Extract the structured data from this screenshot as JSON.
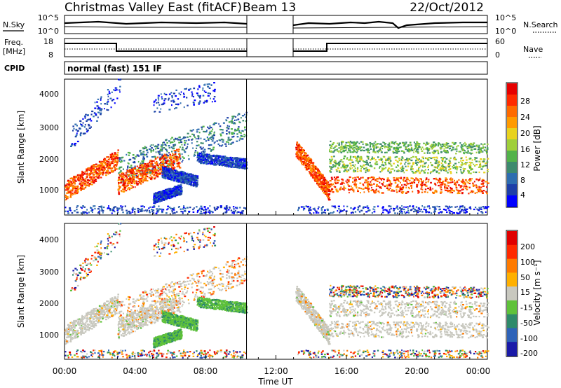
{
  "header": {
    "title": "Christmas Valley East (fitACF)",
    "beam": "Beam 13",
    "date": "22/Oct/2012"
  },
  "noise_panel": {
    "left_label": "N.Sky",
    "left_ticks": [
      "10^5",
      "10^0"
    ],
    "right_ticks": [
      "10^5",
      "10^0"
    ],
    "right_label": "N.Search"
  },
  "freq_panel": {
    "left_label_1": "Freq.",
    "left_label_2": "[MHz]",
    "left_ticks": [
      "18",
      "8"
    ],
    "right_ticks": [
      "60",
      "0"
    ],
    "right_label": "Nave"
  },
  "cpid_panel": {
    "label": "CPID",
    "mode_text": "normal (fast) 151 IF"
  },
  "chart_data": [
    {
      "type": "heatmap",
      "ylabel": "Slant Range [km]",
      "y_ticks": [
        "4000",
        "3000",
        "2000",
        "1000"
      ],
      "ylim": [
        180,
        4500
      ],
      "xlim_hours": [
        0,
        24
      ],
      "data_gap_hours": [
        10.33,
        13.0
      ],
      "colorbar": {
        "label": "Power [dB]",
        "ticks": [
          "28",
          "24",
          "20",
          "16",
          "12",
          "8",
          "4"
        ],
        "colors": [
          "#0000ff",
          "#1e3fa8",
          "#2e6db0",
          "#3d8a6e",
          "#52b24a",
          "#9fcf3a",
          "#e8d21e",
          "#ff9a00",
          "#ff6a00",
          "#ff2a00",
          "#e60000"
        ]
      }
    },
    {
      "type": "heatmap",
      "ylabel": "Slant Range [km]",
      "y_ticks": [
        "4000",
        "3000",
        "2000",
        "1000"
      ],
      "ylim": [
        180,
        4500
      ],
      "xlim_hours": [
        0,
        24
      ],
      "data_gap_hours": [
        10.33,
        13.0
      ],
      "colorbar": {
        "label": "Velocity [m s⁻¹]",
        "ticks": [
          "200",
          "100",
          "50",
          "15",
          "-15",
          "-50",
          "-100",
          "-200"
        ],
        "colors": [
          "#1a1aa8",
          "#2e63b8",
          "#2e8a6a",
          "#5fc23a",
          "#c8c8bf",
          "#ffb000",
          "#ff7a00",
          "#ff2a00",
          "#e00000"
        ]
      }
    }
  ],
  "time_axis": {
    "ticks": [
      "00:00",
      "04:00",
      "08:00",
      "12:00",
      "16:00",
      "20:00",
      "00:00"
    ],
    "label": "Time UT"
  }
}
